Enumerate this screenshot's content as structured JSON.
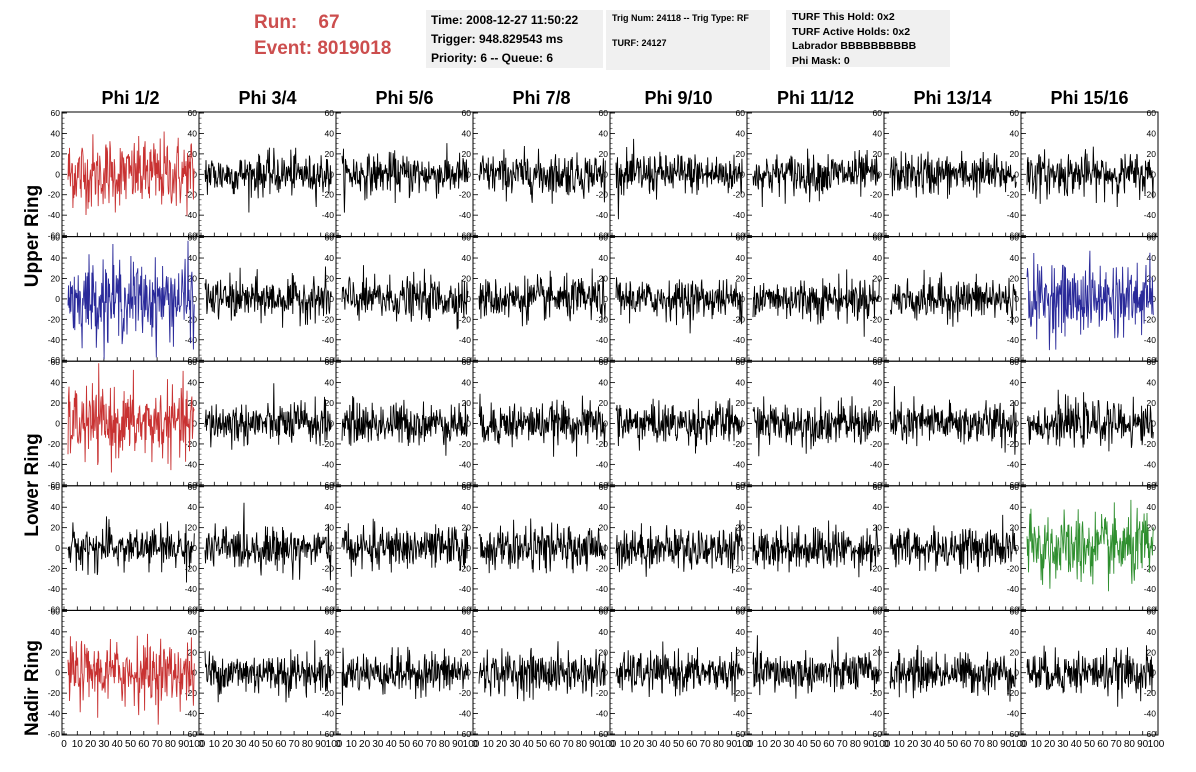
{
  "header": {
    "run_label": "Run:",
    "run_value": "67",
    "event_label": "Event:",
    "event_value": "8019018",
    "time": "Time: 2008-12-27 11:50:22",
    "trigger": "Trigger: 948.829543 ms",
    "priority": "Priority: 6 -- Queue: 6",
    "trig_line": "Trig Num: 24118 -- Trig Type: RF",
    "turf_line": "TURF: 24127",
    "turf_hold": "TURF This Hold: 0x2",
    "turf_active": "TURF Active Holds: 0x2",
    "labrador": "Labrador BBBBBBBBBB",
    "phi_mask": "Phi Mask: 0"
  },
  "colors": {
    "red": "#c83232",
    "blue": "#2a2a9a",
    "green": "#2f8f2f",
    "black": "#000000"
  },
  "chart_data": {
    "type": "line",
    "columns": [
      "Phi 1/2",
      "Phi 3/4",
      "Phi 5/6",
      "Phi 7/8",
      "Phi 9/10",
      "Phi 11/12",
      "Phi 13/14",
      "Phi 15/16"
    ],
    "ring_labels": [
      "Upper Ring",
      "Lower Ring",
      "Nadir Ring"
    ],
    "xlim": [
      0,
      100
    ],
    "ylim": [
      -60,
      60
    ],
    "x_tick_labels": [
      "0",
      "10",
      "20",
      "30",
      "40",
      "50",
      "60",
      "70",
      "80",
      "90",
      "100"
    ],
    "y_tick_labels": [
      "-60",
      "-40",
      "-20",
      "0",
      "20",
      "40",
      "60"
    ],
    "trace_colors": [
      [
        "red",
        "black",
        "black",
        "black",
        "black",
        "black",
        "black",
        "black"
      ],
      [
        "blue",
        "black",
        "black",
        "black",
        "black",
        "black",
        "black",
        "blue"
      ],
      [
        "red",
        "black",
        "black",
        "black",
        "black",
        "black",
        "black",
        "black"
      ],
      [
        "black",
        "black",
        "black",
        "black",
        "black",
        "black",
        "black",
        "green"
      ],
      [
        "red",
        "black",
        "black",
        "black",
        "black",
        "black",
        "black",
        "black"
      ]
    ],
    "trace_amplitude_rms": [
      [
        20,
        12,
        12,
        12,
        12,
        12,
        12,
        12
      ],
      [
        22,
        12,
        12,
        12,
        11,
        12,
        12,
        20
      ],
      [
        20,
        12,
        12,
        12,
        12,
        12,
        12,
        12
      ],
      [
        12,
        12,
        12,
        12,
        12,
        12,
        12,
        20
      ],
      [
        18,
        12,
        12,
        12,
        11,
        12,
        12,
        12
      ]
    ]
  }
}
